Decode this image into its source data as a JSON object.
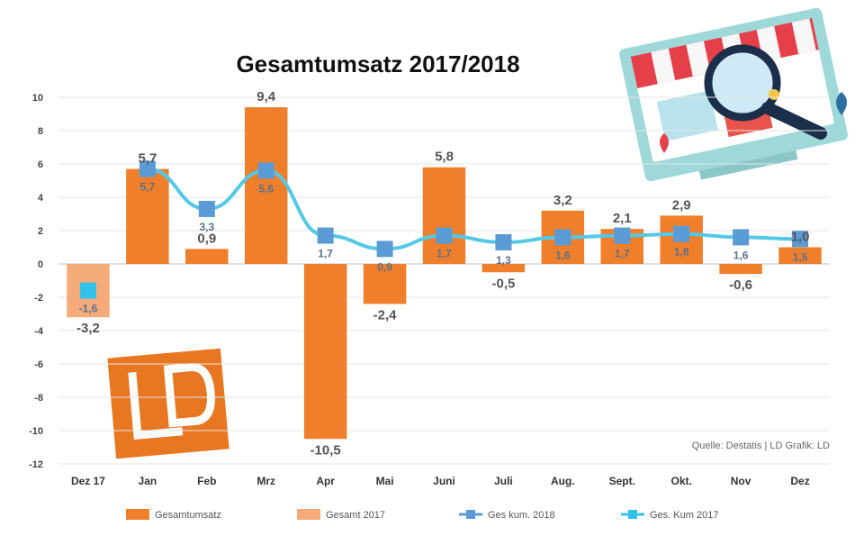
{
  "chart_data": {
    "type": "bar",
    "title": "Gesamtumsatz 2017/2018",
    "source": "Quelle: Destatis | LD Grafik: LD",
    "ylim": [
      -12,
      10
    ],
    "yticks": [
      "-12",
      "-10",
      "-8",
      "-6",
      "-4",
      "-2",
      "0",
      "2",
      "4",
      "6",
      "8",
      "10"
    ],
    "categories": [
      "Dez 17",
      "Jan",
      "Feb",
      "Mrz",
      "Apr",
      "Mai",
      "Juni",
      "Juli",
      "Aug.",
      "Sept.",
      "Okt.",
      "Nov",
      "Dez"
    ],
    "series": [
      {
        "name": "Gesamtumsatz",
        "kind": "bar",
        "color": "#ef7f2a",
        "values": [
          null,
          5.7,
          0.9,
          9.4,
          -10.5,
          -2.4,
          5.8,
          -0.5,
          3.2,
          2.1,
          2.9,
          -0.6,
          1.0
        ],
        "labels": [
          "",
          "5,7",
          "0,9",
          "9,4",
          "-10,5",
          "-2,4",
          "5,8",
          "-0,5",
          "3,2",
          "2,1",
          "2,9",
          "-0,6",
          "1,0"
        ]
      },
      {
        "name": "Gesamt 2017",
        "kind": "bar",
        "color": "#f5aa7a",
        "values": [
          -3.2,
          null,
          null,
          null,
          null,
          null,
          null,
          null,
          null,
          null,
          null,
          null,
          null
        ],
        "labels": [
          "-3,2",
          "",
          "",
          "",
          "",
          "",
          "",
          "",
          "",
          "",
          "",
          "",
          ""
        ]
      },
      {
        "name": "Ges kum. 2018",
        "kind": "line",
        "color": "#5b9bd5",
        "values": [
          null,
          5.7,
          3.3,
          5.6,
          1.7,
          0.9,
          1.7,
          1.3,
          1.6,
          1.7,
          1.8,
          1.6,
          1.5
        ],
        "labels": [
          "",
          "5,7",
          "3,3",
          "5,6",
          "1,7",
          "0,9",
          "1,7",
          "1,3",
          "1,6",
          "1,7",
          "1,8",
          "1,6",
          "1,5"
        ]
      },
      {
        "name": "Ges. Kum 2017",
        "kind": "point",
        "color": "#33c3ea",
        "values": [
          -1.6,
          null,
          null,
          null,
          null,
          null,
          null,
          null,
          null,
          null,
          null,
          null,
          null
        ],
        "labels": [
          "-1,6",
          "",
          "",
          "",
          "",
          "",
          "",
          "",
          "",
          "",
          "",
          "",
          ""
        ]
      }
    ],
    "legend_position": "bottom",
    "grid": true
  }
}
